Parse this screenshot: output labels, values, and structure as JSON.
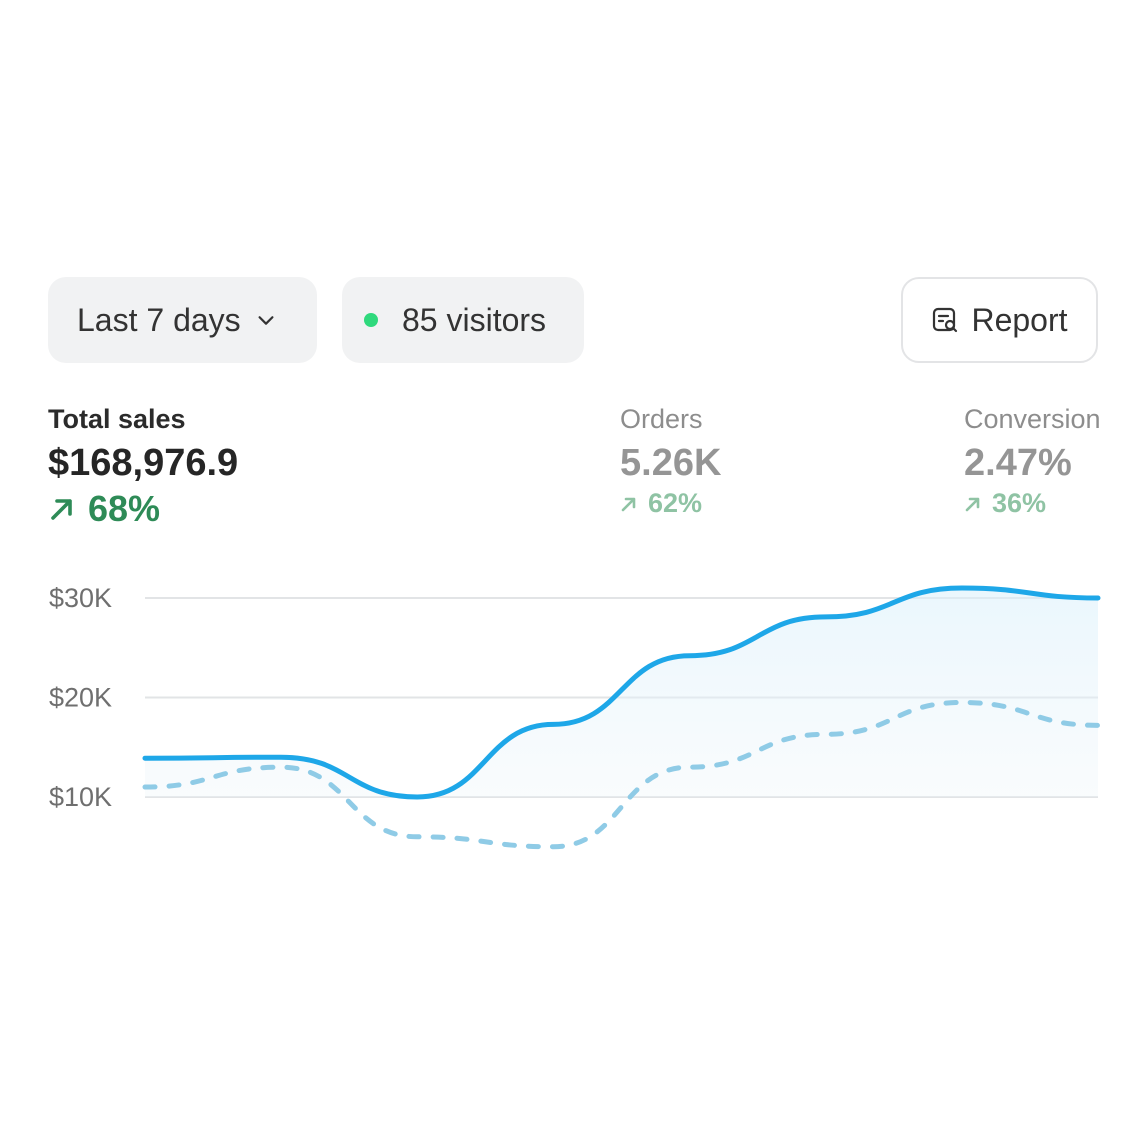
{
  "controls": {
    "range_label": "Last 7 days",
    "visitors_label": "85 visitors",
    "report_label": "Report",
    "visitors_dot_color": "#2fd97c"
  },
  "metrics": {
    "sales": {
      "label": "Total sales",
      "value": "$168,976.9",
      "delta": "68%"
    },
    "orders": {
      "label": "Orders",
      "value": "5.26K",
      "delta": "62%"
    },
    "conversion": {
      "label": "Conversion",
      "value": "2.47%",
      "delta": "36%"
    }
  },
  "chart_data": {
    "type": "line",
    "y_ticks": [
      {
        "label": "$30K",
        "value": 30000
      },
      {
        "label": "$20K",
        "value": 20000
      },
      {
        "label": "$10K",
        "value": 10000
      }
    ],
    "ylim": [
      5000,
      30000
    ],
    "grid": true,
    "series": [
      {
        "style": "solid",
        "color": "#1ea7e8",
        "values": [
          13900,
          14000,
          10000,
          17300,
          24200,
          28100,
          31000,
          30000
        ]
      },
      {
        "style": "dashed",
        "color": "#8fcbe6",
        "values": [
          11000,
          13000,
          6000,
          5000,
          13000,
          16300,
          19500,
          17200
        ]
      }
    ]
  }
}
